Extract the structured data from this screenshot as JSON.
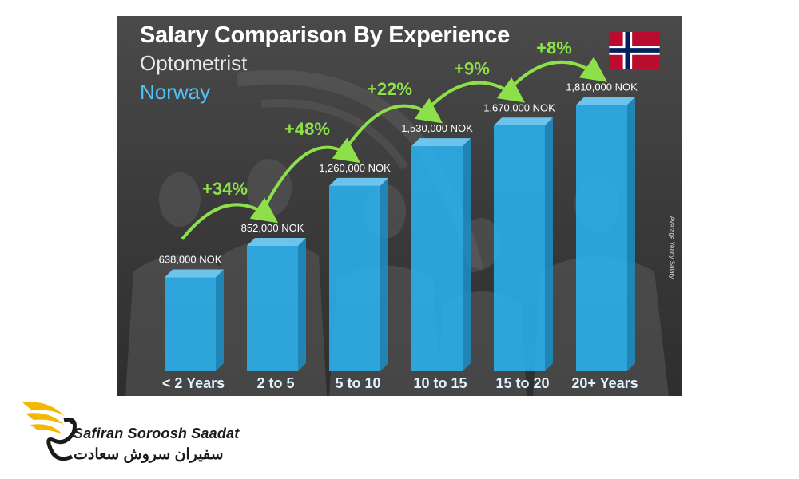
{
  "chart_data": {
    "type": "bar",
    "title": "Salary Comparison By Experience",
    "subtitle": "Optometrist",
    "country": "Norway",
    "ylabel": "Average Yearly Salary",
    "categories": [
      "< 2 Years",
      "2 to 5",
      "5 to 10",
      "10 to 15",
      "15 to 20",
      "20+ Years"
    ],
    "values": [
      638000,
      852000,
      1260000,
      1530000,
      1670000,
      1810000
    ],
    "value_labels": [
      "638,000 NOK",
      "852,000 NOK",
      "1,260,000 NOK",
      "1,530,000 NOK",
      "1,670,000 NOK",
      "1,810,000 NOK"
    ],
    "growth_labels": [
      "+34%",
      "+48%",
      "+22%",
      "+9%",
      "+8%"
    ],
    "unit": "NOK",
    "ylim": [
      0,
      2000000
    ],
    "bar_color": "#29b6f6",
    "arrow_color": "#8de04a",
    "title_color": "#ffffff",
    "country_color": "#4fc3f7"
  },
  "flag": {
    "name": "norway-flag-icon",
    "colors": [
      "#ba0c2f",
      "#ffffff",
      "#00205b"
    ]
  },
  "brand": {
    "name_en": "Safiran Soroosh Saadat",
    "name_fa": "سفیران سروش سعادت",
    "logo_color": "#f5b800"
  }
}
